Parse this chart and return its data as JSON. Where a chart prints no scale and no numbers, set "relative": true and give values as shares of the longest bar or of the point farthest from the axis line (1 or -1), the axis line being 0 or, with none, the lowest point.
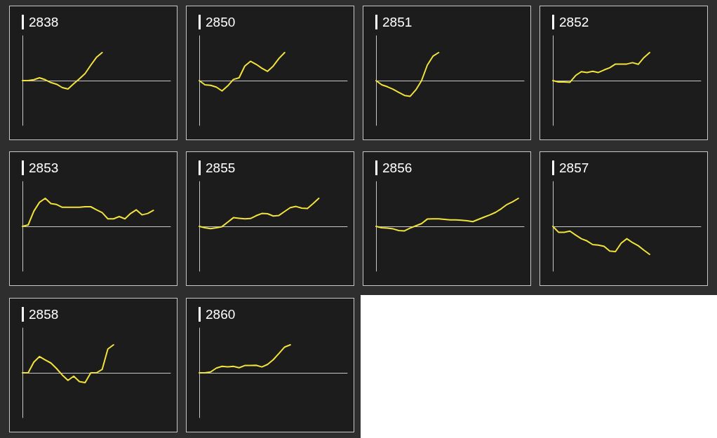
{
  "chart_data": [
    {
      "type": "line",
      "title": "2838",
      "relative": true,
      "categories": [
        null,
        null,
        null,
        null,
        null,
        null,
        null,
        null,
        null,
        null,
        null,
        null,
        null,
        null,
        null,
        null,
        null,
        null,
        null,
        null,
        null,
        null,
        null,
        null,
        null,
        null,
        null
      ],
      "series": [
        {
          "color": "#f2e23c",
          "values": [
            0,
            0,
            0.03,
            0.1,
            0.03,
            -0.07,
            -0.13,
            -0.25,
            -0.3,
            -0.11,
            0.06,
            0.25,
            0.55,
            0.83,
            1,
            null,
            null,
            null,
            null,
            null,
            null,
            null,
            null,
            null,
            null,
            null,
            null
          ]
        }
      ]
    },
    {
      "type": "line",
      "title": "2850",
      "relative": true,
      "categories": [
        null,
        null,
        null,
        null,
        null,
        null,
        null,
        null,
        null,
        null,
        null,
        null,
        null,
        null,
        null,
        null,
        null,
        null,
        null,
        null,
        null,
        null,
        null,
        null,
        null,
        null,
        null
      ],
      "series": [
        {
          "color": "#f2e23c",
          "values": [
            0,
            -0.15,
            -0.17,
            -0.23,
            -0.37,
            -0.19,
            0.04,
            0.1,
            0.52,
            0.69,
            0.58,
            0.44,
            0.33,
            0.52,
            0.79,
            1,
            null,
            null,
            null,
            null,
            null,
            null,
            null,
            null,
            null,
            null,
            null
          ]
        }
      ]
    },
    {
      "type": "line",
      "title": "2851",
      "relative": true,
      "categories": [
        null,
        null,
        null,
        null,
        null,
        null,
        null,
        null,
        null,
        null,
        null,
        null,
        null,
        null,
        null,
        null,
        null,
        null,
        null,
        null,
        null,
        null,
        null,
        null,
        null,
        null,
        null
      ],
      "series": [
        {
          "color": "#f2e23c",
          "values": [
            0,
            -0.15,
            -0.22,
            -0.31,
            -0.42,
            -0.53,
            -0.56,
            -0.33,
            0,
            0.55,
            0.87,
            1,
            null,
            null,
            null,
            null,
            null,
            null,
            null,
            null,
            null,
            null,
            null,
            null,
            null,
            null,
            null
          ]
        }
      ]
    },
    {
      "type": "line",
      "title": "2852",
      "relative": true,
      "categories": [
        null,
        null,
        null,
        null,
        null,
        null,
        null,
        null,
        null,
        null,
        null,
        null,
        null,
        null,
        null,
        null,
        null,
        null,
        null,
        null,
        null,
        null,
        null,
        null,
        null,
        null,
        null
      ],
      "series": [
        {
          "color": "#f2e23c",
          "values": [
            0,
            -0.05,
            -0.05,
            -0.06,
            0.18,
            0.32,
            0.29,
            0.33,
            0.29,
            0.38,
            0.46,
            0.59,
            0.59,
            0.59,
            0.64,
            0.58,
            0.82,
            1,
            null,
            null,
            null,
            null,
            null,
            null,
            null,
            null,
            null
          ]
        }
      ]
    },
    {
      "type": "line",
      "title": "2853",
      "relative": true,
      "categories": [
        null,
        null,
        null,
        null,
        null,
        null,
        null,
        null,
        null,
        null,
        null,
        null,
        null,
        null,
        null,
        null,
        null,
        null,
        null,
        null,
        null,
        null,
        null,
        null,
        null,
        null,
        null
      ],
      "series": [
        {
          "color": "#f2e23c",
          "values": [
            0,
            0.05,
            0.54,
            0.86,
            1,
            0.81,
            0.78,
            0.68,
            0.68,
            0.68,
            0.68,
            0.7,
            0.7,
            0.59,
            0.49,
            0.27,
            0.27,
            0.35,
            0.27,
            0.46,
            0.59,
            0.41,
            0.46,
            0.57,
            null,
            null,
            null
          ]
        }
      ]
    },
    {
      "type": "line",
      "title": "2855",
      "relative": true,
      "categories": [
        null,
        null,
        null,
        null,
        null,
        null,
        null,
        null,
        null,
        null,
        null,
        null,
        null,
        null,
        null,
        null,
        null,
        null,
        null,
        null,
        null,
        null,
        null,
        null,
        null,
        null,
        null
      ],
      "series": [
        {
          "color": "#f2e23c",
          "values": [
            0,
            -0.05,
            -0.08,
            -0.05,
            -0.01,
            0.15,
            0.31,
            0.29,
            0.27,
            0.28,
            0.38,
            0.46,
            0.45,
            0.37,
            0.39,
            0.53,
            0.67,
            0.71,
            0.65,
            0.64,
            0.81,
            1,
            null,
            null,
            null,
            null,
            null
          ]
        }
      ]
    },
    {
      "type": "line",
      "title": "2856",
      "relative": true,
      "categories": [
        null,
        null,
        null,
        null,
        null,
        null,
        null,
        null,
        null,
        null,
        null,
        null,
        null,
        null,
        null,
        null,
        null,
        null,
        null,
        null,
        null,
        null,
        null,
        null,
        null,
        null,
        null
      ],
      "series": [
        {
          "color": "#f2e23c",
          "values": [
            0,
            -0.05,
            -0.06,
            -0.09,
            -0.15,
            -0.16,
            -0.06,
            0.02,
            0.1,
            0.26,
            0.27,
            0.27,
            0.25,
            0.23,
            0.23,
            0.22,
            0.2,
            0.17,
            0.25,
            0.33,
            0.41,
            0.5,
            0.63,
            0.78,
            0.88,
            1,
            null
          ]
        }
      ]
    },
    {
      "type": "line",
      "title": "2857",
      "relative": true,
      "categories": [
        null,
        null,
        null,
        null,
        null,
        null,
        null,
        null,
        null,
        null,
        null,
        null,
        null,
        null,
        null,
        null,
        null,
        null,
        null,
        null,
        null,
        null,
        null,
        null,
        null,
        null,
        null
      ],
      "series": [
        {
          "color": "#f2e23c",
          "values": [
            0,
            -0.21,
            -0.21,
            -0.17,
            -0.31,
            -0.44,
            -0.52,
            -0.65,
            -0.67,
            -0.71,
            -0.88,
            -0.9,
            -0.6,
            -0.44,
            -0.58,
            -0.69,
            -0.85,
            -1,
            null,
            null,
            null,
            null,
            null,
            null,
            null,
            null,
            null
          ]
        }
      ]
    },
    {
      "type": "line",
      "title": "2858",
      "relative": true,
      "categories": [
        null,
        null,
        null,
        null,
        null,
        null,
        null,
        null,
        null,
        null,
        null,
        null,
        null,
        null,
        null,
        null,
        null,
        null,
        null,
        null,
        null,
        null,
        null,
        null,
        null,
        null,
        null
      ],
      "series": [
        {
          "color": "#f2e23c",
          "values": [
            0,
            0,
            0.38,
            0.58,
            0.46,
            0.35,
            0.15,
            -0.08,
            -0.27,
            -0.12,
            -0.31,
            -0.35,
            0,
            0,
            0.12,
            0.85,
            1,
            null,
            null,
            null,
            null,
            null,
            null,
            null,
            null,
            null,
            null
          ]
        }
      ]
    },
    {
      "type": "line",
      "title": "2860",
      "relative": true,
      "categories": [
        null,
        null,
        null,
        null,
        null,
        null,
        null,
        null,
        null,
        null,
        null,
        null,
        null,
        null,
        null,
        null,
        null,
        null,
        null,
        null,
        null,
        null,
        null,
        null,
        null,
        null,
        null
      ],
      "series": [
        {
          "color": "#f2e23c",
          "values": [
            0,
            0,
            0.03,
            0.17,
            0.23,
            0.21,
            0.23,
            0.18,
            0.26,
            0.26,
            0.27,
            0.21,
            0.3,
            0.47,
            0.69,
            0.92,
            1,
            null,
            null,
            null,
            null,
            null,
            null,
            null,
            null,
            null,
            null
          ]
        }
      ]
    }
  ]
}
